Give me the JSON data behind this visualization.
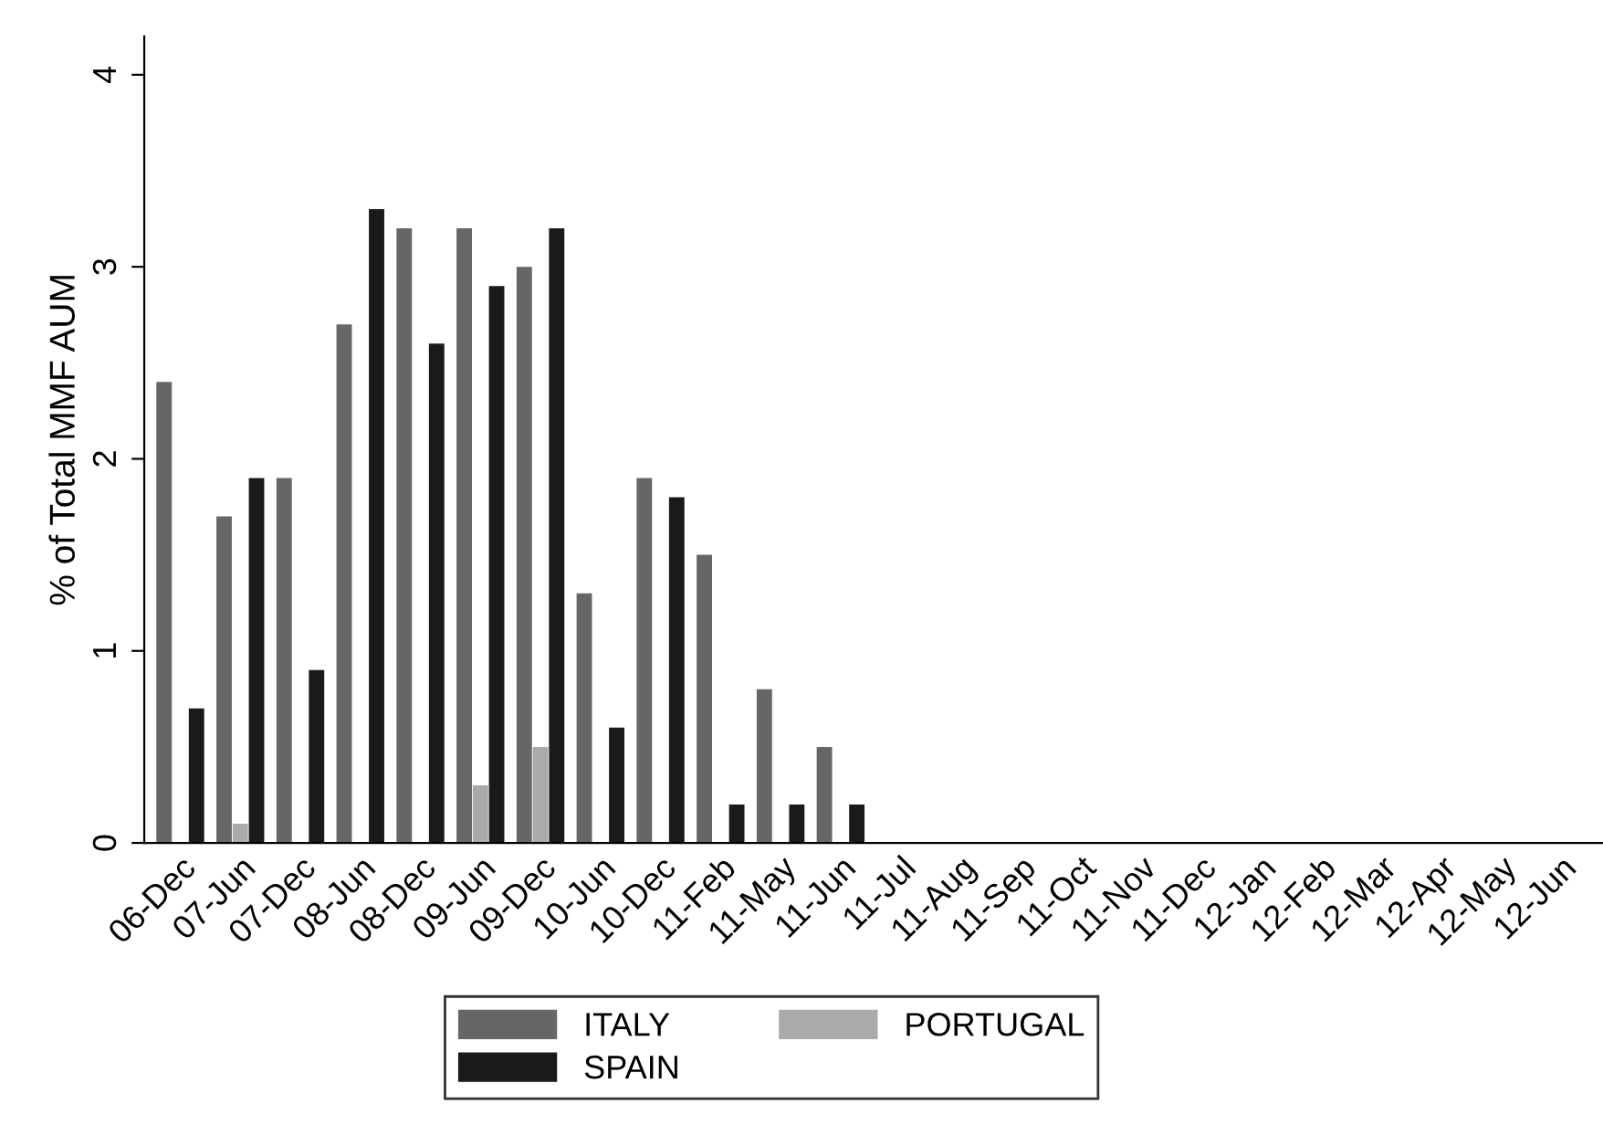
{
  "chart_data": {
    "type": "bar",
    "ylabel": "% of Total MMF AUM",
    "categories": [
      "06-Dec",
      "07-Jun",
      "07-Dec",
      "08-Jun",
      "08-Dec",
      "09-Jun",
      "09-Dec",
      "10-Jun",
      "10-Dec",
      "11-Feb",
      "11-May",
      "11-Jun",
      "11-Jul",
      "11-Aug",
      "11-Sep",
      "11-Oct",
      "11-Nov",
      "11-Dec",
      "12-Jan",
      "12-Feb",
      "12-Mar",
      "12-Apr",
      "12-May",
      "12-Jun"
    ],
    "series": [
      {
        "name": "ITALY",
        "color": "#666666",
        "values": [
          2.4,
          1.7,
          1.9,
          2.7,
          3.2,
          3.2,
          3.0,
          1.3,
          1.9,
          1.5,
          0.8,
          0.5,
          0,
          0,
          0,
          0,
          0,
          0,
          0,
          0,
          0,
          0,
          0,
          0
        ]
      },
      {
        "name": "PORTUGAL",
        "color": "#aaaaaa",
        "values": [
          0,
          0.1,
          0,
          0,
          0,
          0.3,
          0.5,
          0,
          0,
          0,
          0,
          0,
          0,
          0,
          0,
          0,
          0,
          0,
          0,
          0,
          0,
          0,
          0,
          0
        ]
      },
      {
        "name": "SPAIN",
        "color": "#1a1a1a",
        "values": [
          0.7,
          1.9,
          0.9,
          3.3,
          2.6,
          2.9,
          3.2,
          0.6,
          1.8,
          0.2,
          0.2,
          0.2,
          0,
          0,
          0,
          0,
          0,
          0,
          0,
          0,
          0,
          0,
          0,
          0
        ]
      }
    ],
    "ylim": [
      0,
      4.2
    ],
    "yticks": [
      0,
      1,
      2,
      3,
      4
    ],
    "grid": false,
    "legend": "bottom"
  }
}
